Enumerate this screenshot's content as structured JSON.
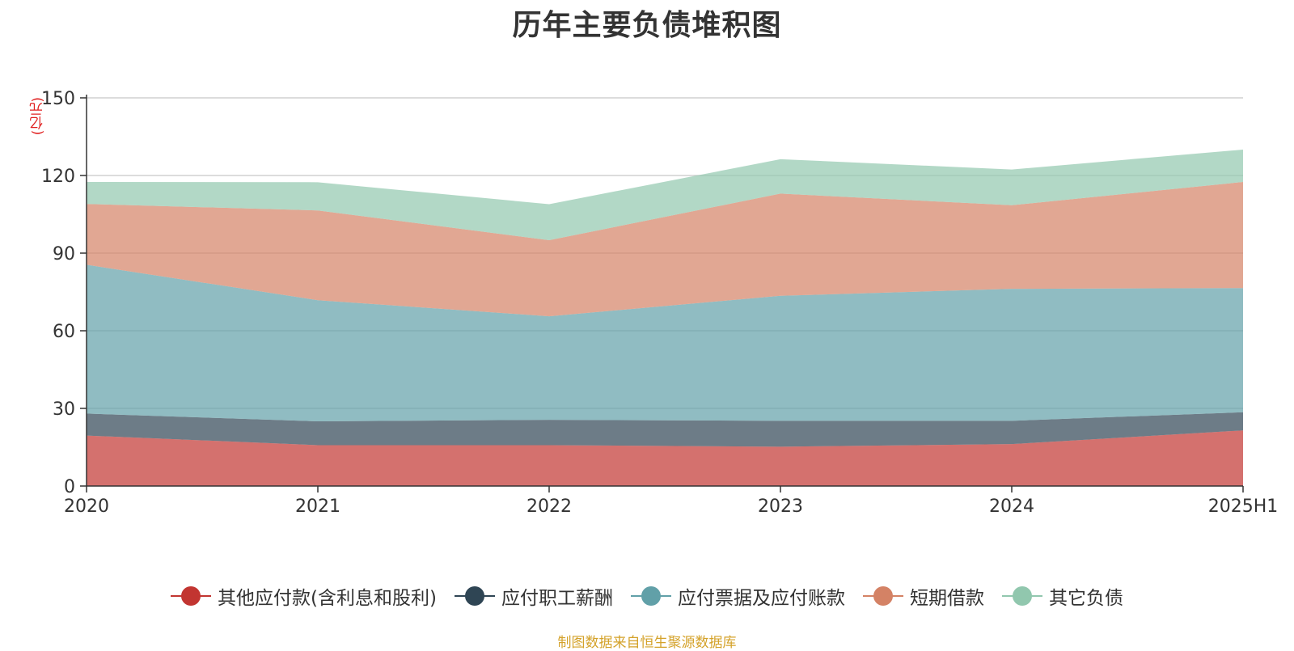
{
  "chart_data": {
    "type": "area",
    "stacked": true,
    "title": "历年主要负债堆积图",
    "unit_label": "(亿元)",
    "categories": [
      "2020",
      "2021",
      "2022",
      "2023",
      "2024",
      "2025H1"
    ],
    "ylim": [
      0,
      150
    ],
    "yticks": [
      "0",
      "30",
      "60",
      "90",
      "120",
      "150"
    ],
    "grid": true,
    "legend_position": "bottom",
    "series": [
      {
        "name": "其他应付款(含利息和股利)",
        "color": "#c23531",
        "values": [
          19.5,
          15.8,
          15.8,
          15.2,
          16.2,
          21.5
        ]
      },
      {
        "name": "应付职工薪酬",
        "color": "#2f4554",
        "values": [
          8.5,
          9.2,
          9.8,
          10.0,
          9.0,
          7.0
        ]
      },
      {
        "name": "应付票据及应付账款",
        "color": "#61a0a8",
        "values": [
          57.5,
          46.8,
          40.0,
          48.3,
          51.0,
          48.0
        ]
      },
      {
        "name": "短期借款",
        "color": "#d48265",
        "values": [
          23.5,
          34.7,
          29.4,
          39.5,
          32.3,
          41.0
        ]
      },
      {
        "name": "其它负债",
        "color": "#91c7ae",
        "values": [
          8.5,
          10.9,
          13.9,
          13.3,
          13.8,
          12.5
        ]
      }
    ]
  },
  "footer": {
    "source": "制图数据来自恒生聚源数据库"
  }
}
